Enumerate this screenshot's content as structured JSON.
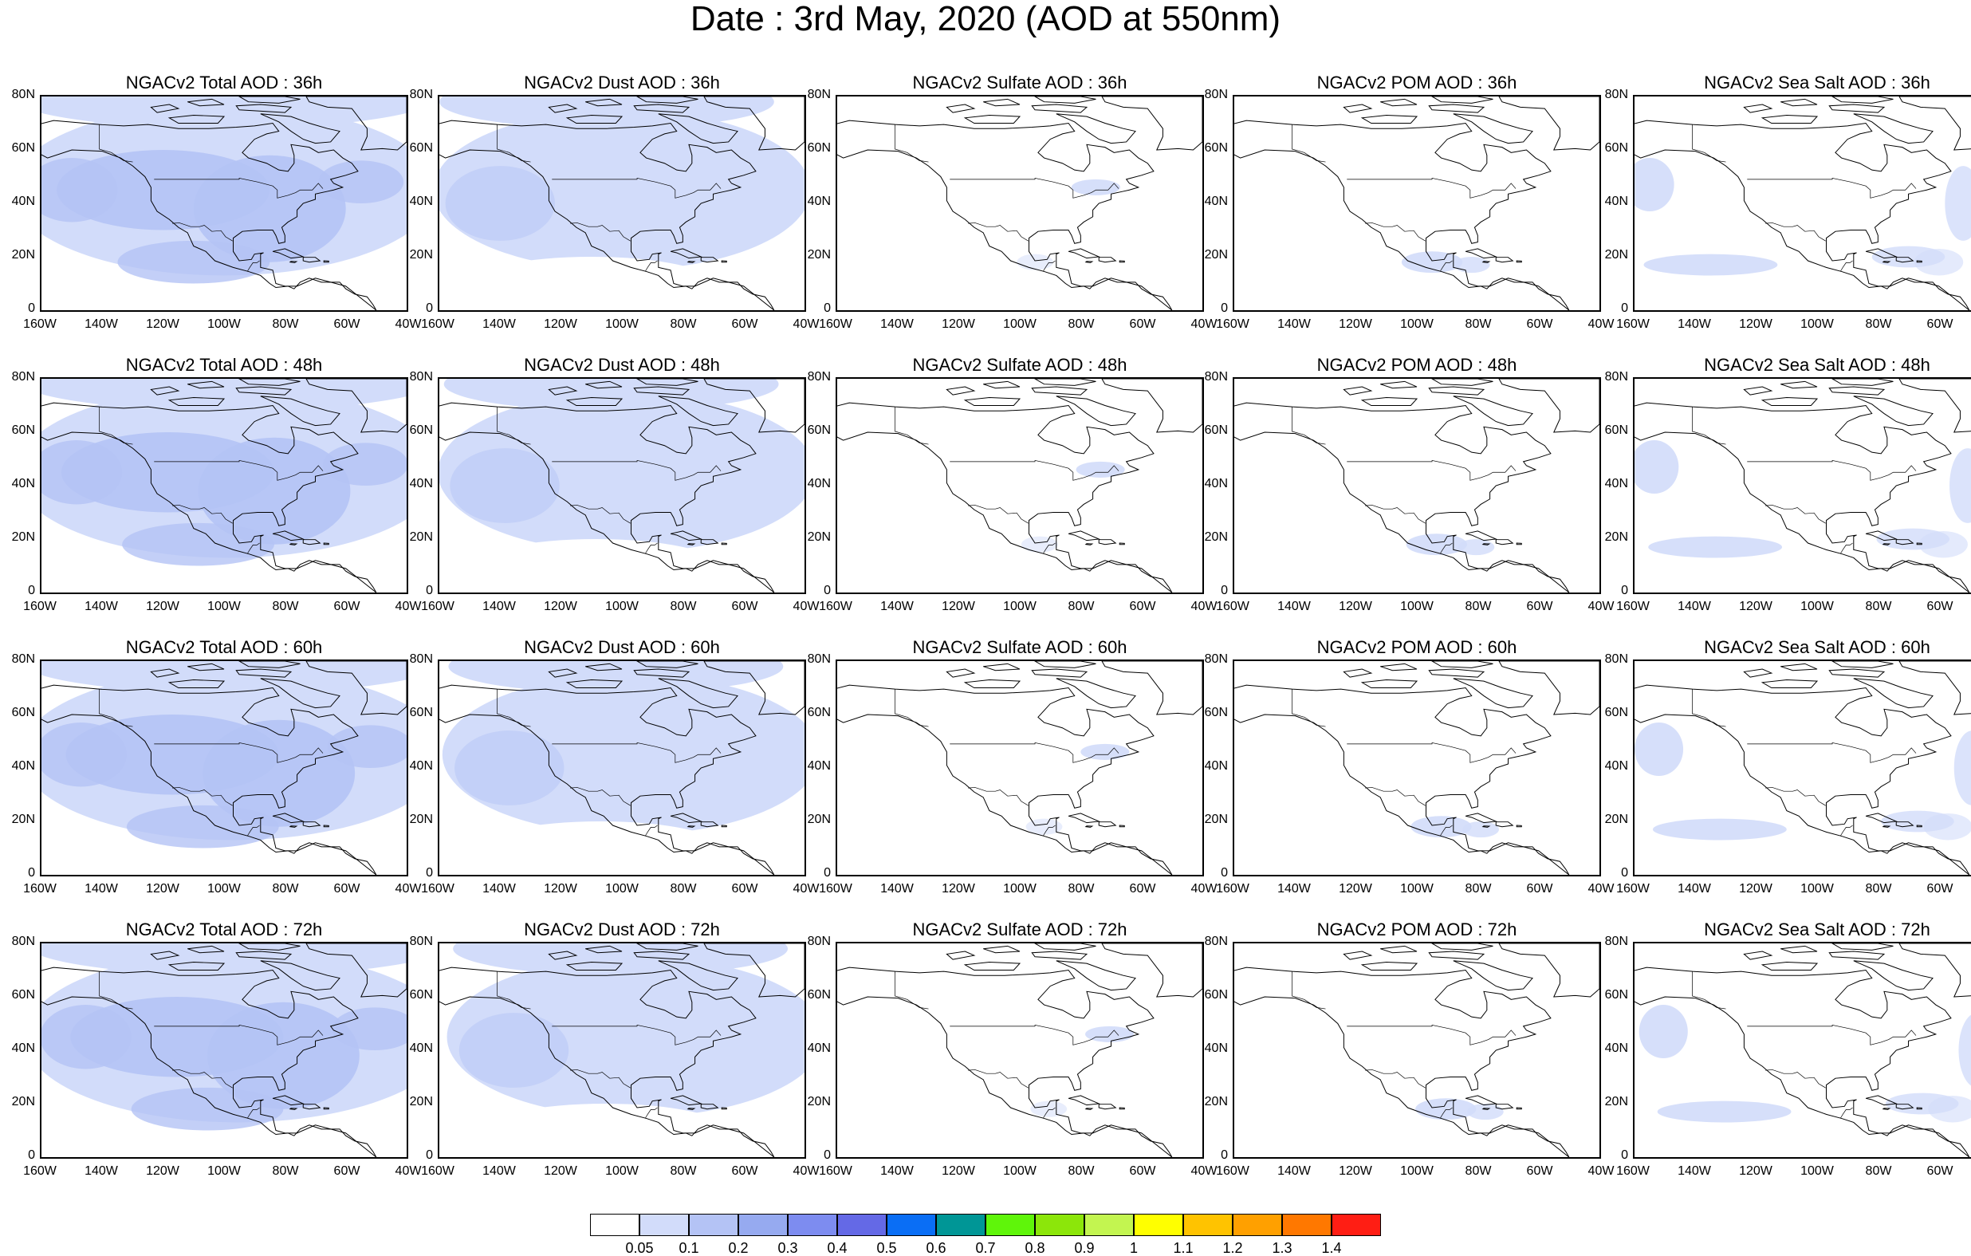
{
  "title": "Date : 3rd May, 2020 (AOD at 550nm)",
  "axes": {
    "y_ticks": [
      "80N",
      "60N",
      "40N",
      "20N",
      "0"
    ],
    "x_ticks": [
      "160W",
      "140W",
      "120W",
      "100W",
      "80W",
      "60W",
      "40W"
    ]
  },
  "panels": [
    {
      "title": "NGACv2 Total AOD : 36h",
      "species": "total",
      "forecast": "36h"
    },
    {
      "title": "NGACv2 Dust AOD : 36h",
      "species": "dust",
      "forecast": "36h"
    },
    {
      "title": "NGACv2 Sulfate AOD : 36h",
      "species": "sulfate",
      "forecast": "36h"
    },
    {
      "title": "NGACv2 POM AOD : 36h",
      "species": "pom",
      "forecast": "36h"
    },
    {
      "title": "NGACv2 Sea Salt AOD : 36h",
      "species": "seasalt",
      "forecast": "36h"
    },
    {
      "title": "NGACv2 Total AOD : 48h",
      "species": "total",
      "forecast": "48h"
    },
    {
      "title": "NGACv2 Dust AOD : 48h",
      "species": "dust",
      "forecast": "48h"
    },
    {
      "title": "NGACv2 Sulfate AOD : 48h",
      "species": "sulfate",
      "forecast": "48h"
    },
    {
      "title": "NGACv2 POM AOD : 48h",
      "species": "pom",
      "forecast": "48h"
    },
    {
      "title": "NGACv2 Sea Salt AOD : 48h",
      "species": "seasalt",
      "forecast": "48h"
    },
    {
      "title": "NGACv2 Total AOD : 60h",
      "species": "total",
      "forecast": "60h"
    },
    {
      "title": "NGACv2 Dust AOD : 60h",
      "species": "dust",
      "forecast": "60h"
    },
    {
      "title": "NGACv2 Sulfate AOD : 60h",
      "species": "sulfate",
      "forecast": "60h"
    },
    {
      "title": "NGACv2 POM AOD : 60h",
      "species": "pom",
      "forecast": "60h"
    },
    {
      "title": "NGACv2 Sea Salt AOD : 60h",
      "species": "seasalt",
      "forecast": "60h"
    },
    {
      "title": "NGACv2 Total AOD : 72h",
      "species": "total",
      "forecast": "72h"
    },
    {
      "title": "NGACv2 Dust AOD : 72h",
      "species": "dust",
      "forecast": "72h"
    },
    {
      "title": "NGACv2 Sulfate AOD : 72h",
      "species": "sulfate",
      "forecast": "72h"
    },
    {
      "title": "NGACv2 POM AOD : 72h",
      "species": "pom",
      "forecast": "72h"
    },
    {
      "title": "NGACv2 Sea Salt  AOD : 72h",
      "species": "seasalt",
      "forecast": "72h"
    }
  ],
  "colorbar": {
    "labels": [
      "0.05",
      "0.1",
      "0.2",
      "0.3",
      "0.4",
      "0.5",
      "0.6",
      "0.7",
      "0.8",
      "0.9",
      "1",
      "1.1",
      "1.2",
      "1.3",
      "1.4"
    ],
    "colors": [
      "#ffffff",
      "#d2dcfa",
      "#b4c3f5",
      "#96aaf0",
      "#7d8cf0",
      "#6469e6",
      "#0a6ef5",
      "#009696",
      "#5ff50a",
      "#8ce60a",
      "#c3f550",
      "#ffff00",
      "#ffc300",
      "#ffa000",
      "#ff7800",
      "#ff1e14"
    ]
  }
}
